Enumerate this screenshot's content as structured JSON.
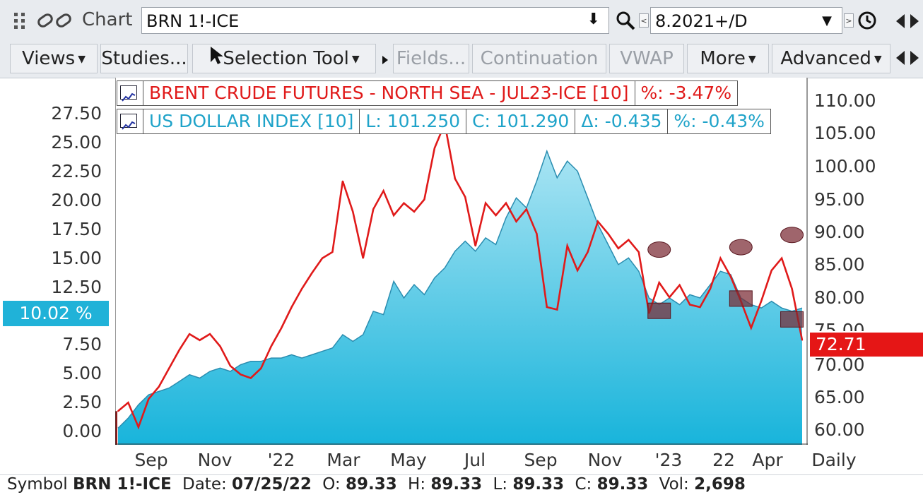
{
  "toolbar": {
    "chart_label": "Chart",
    "symbol_value": "BRN 1!-ICE",
    "period_value": "8.2021+/D"
  },
  "toolbar2": {
    "views": "Views",
    "studies": "Studies...",
    "selection_tool": "Selection Tool",
    "fields": "Fields...",
    "continuation": "Continuation",
    "vwap": "VWAP",
    "more": "More",
    "advanced": "Advanced"
  },
  "legend": {
    "row1": {
      "name": "BRENT CRUDE FUTURES - NORTH SEA - JUL23-ICE [10]",
      "pct": "%: -3.47%"
    },
    "row2": {
      "name": "US DOLLAR INDEX [10]",
      "low": "L: 101.250",
      "close": "C: 101.290",
      "delta": "Δ: -0.435",
      "pct": "%: -0.43%"
    }
  },
  "badges": {
    "left_pct": "10.02 %",
    "right_price": "72.71"
  },
  "status": {
    "symbol_label": "Symbol",
    "symbol": "BRN 1!-ICE",
    "date_label": "Date:",
    "date": "07/25/22",
    "open_label": "O:",
    "open": "89.33",
    "high_label": "H:",
    "high": "89.33",
    "low_label": "L:",
    "low": "89.33",
    "close_label": "C:",
    "close": "89.33",
    "vol_label": "Vol:",
    "vol": "2,698"
  },
  "colors": {
    "brent": "#e01a1a",
    "dxy_line": "#2a8db0",
    "dxy_fill_top": "#a9e4f3",
    "dxy_fill_bottom": "#18b4db",
    "marker": "#7a2a33"
  },
  "chart_data": {
    "type": "line",
    "left_axis": {
      "ticks": [
        "27.50",
        "25.00",
        "22.50",
        "20.00",
        "17.50",
        "15.00",
        "12.50",
        "7.50",
        "5.00",
        "2.50",
        "0.00"
      ],
      "range": [
        -1.25,
        28.75
      ]
    },
    "right_axis": {
      "ticks": [
        "110.00",
        "105.00",
        "100.00",
        "95.00",
        "90.00",
        "85.00",
        "80.00",
        "75.00",
        "70.00",
        "65.00",
        "60.00"
      ],
      "range": [
        58,
        113
      ]
    },
    "x_ticks": [
      "Sep",
      "Nov",
      "'22",
      "Mar",
      "May",
      "Jul",
      "Sep",
      "Nov",
      "'23",
      "22",
      "Apr",
      "Daily"
    ],
    "series": [
      {
        "name": "BRENT CRUDE FUTURES - NORTH SEA - JUL23-ICE [10]",
        "axis": "left",
        "style": "line",
        "values": [
          1.5,
          2.2,
          0.2,
          2.5,
          3.5,
          5.0,
          6.5,
          7.8,
          7.3,
          7.8,
          6.8,
          5.2,
          4.5,
          4.2,
          5.0,
          6.8,
          8.3,
          10.0,
          11.5,
          12.8,
          14.0,
          14.5,
          20.3,
          17.8,
          14.0,
          18.0,
          19.5,
          17.5,
          18.5,
          17.8,
          18.8,
          23.0,
          25.0,
          20.5,
          19.0,
          15.0,
          18.5,
          17.5,
          18.5,
          17.0,
          18.0,
          16.0,
          10.0,
          9.8,
          15.0,
          13.0,
          14.5,
          17.0,
          16.0,
          14.8,
          15.5,
          14.5,
          9.5,
          12.0,
          10.8,
          11.8,
          10.2,
          10.0,
          11.5,
          14.0,
          12.5,
          10.5,
          8.3,
          10.5,
          13.0,
          14.0,
          11.5,
          7.3
        ]
      },
      {
        "name": "US DOLLAR INDEX [10]",
        "axis": "right",
        "style": "area",
        "values": [
          60.5,
          62.0,
          64.0,
          65.5,
          66.0,
          66.5,
          67.5,
          68.5,
          68.0,
          69.0,
          69.5,
          69.0,
          70.0,
          70.5,
          70.5,
          71.0,
          71.0,
          71.5,
          71.0,
          71.5,
          72.0,
          72.5,
          74.5,
          73.5,
          74.5,
          78.0,
          77.5,
          82.5,
          80.0,
          82.0,
          80.5,
          83.0,
          84.5,
          87.0,
          88.5,
          87.0,
          89.0,
          88.0,
          92.0,
          95.0,
          93.5,
          97.5,
          102.0,
          98.0,
          100.5,
          99.0,
          95.0,
          91.0,
          88.0,
          85.0,
          86.0,
          84.0,
          80.0,
          79.0,
          80.0,
          79.0,
          80.5,
          80.0,
          82.0,
          84.0,
          83.5,
          80.0,
          79.0,
          78.5,
          79.5,
          78.5,
          78.0,
          78.5
        ]
      }
    ],
    "markers": {
      "ellipses": [
        {
          "x_index": 53,
          "y_left": 14.7
        },
        {
          "x_index": 61,
          "y_left": 14.9
        },
        {
          "x_index": 66,
          "y_left": 15.9
        }
      ],
      "squares": [
        {
          "x_index": 53,
          "y_left": 9.7
        },
        {
          "x_index": 61,
          "y_left": 10.7
        },
        {
          "x_index": 66,
          "y_left": 9.0
        }
      ]
    }
  }
}
